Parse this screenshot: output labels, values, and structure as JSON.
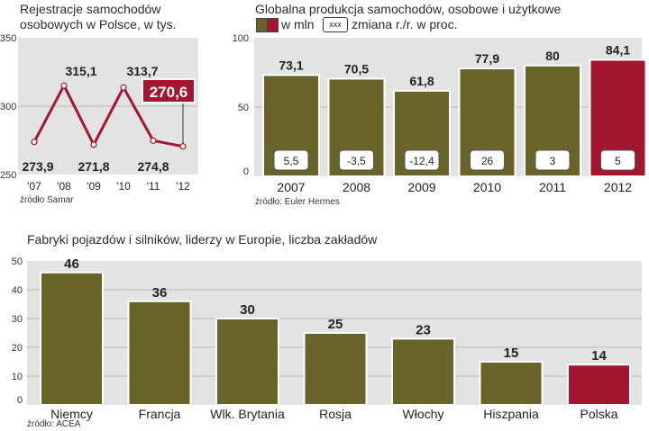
{
  "colors": {
    "olive": "#68642a",
    "crimson": "#a3162f",
    "panel": "#e3e3e3",
    "grid": "#b9b9b9",
    "label_box": "#ffffff",
    "text": "#222222"
  },
  "chart_data": [
    {
      "id": "registrations",
      "type": "line",
      "title_line1": "Rejestracje samochodów",
      "title_line2": "osobowych w Polsce, w tys.",
      "categories": [
        "'07",
        "'08",
        "'09",
        "'10",
        "'11",
        "'12"
      ],
      "values": [
        273.9,
        315.1,
        271.8,
        313.7,
        274.8,
        270.6
      ],
      "value_labels": [
        "273,9",
        "315,1",
        "271,8",
        "313,7",
        "274,8",
        "270,6"
      ],
      "highlight_index": 5,
      "y_ticks": [
        "250",
        "300",
        "350"
      ],
      "ylim": [
        250,
        350
      ],
      "source": "źródło Samar",
      "grid": true
    },
    {
      "id": "global_production",
      "type": "bar",
      "title": "Globalna produkcja samochodów, osobowe i użytkowe",
      "legend_unit": "w mln",
      "legend_box_label": "xxx",
      "legend_change": "zmiana r./r. w proc.",
      "categories": [
        "2007",
        "2008",
        "2009",
        "2010",
        "2011",
        "2012"
      ],
      "values": [
        73.1,
        70.5,
        61.8,
        77.9,
        80,
        84.1
      ],
      "value_labels": [
        "73,1",
        "70,5",
        "61,8",
        "77,9",
        "80",
        "84,1"
      ],
      "changes": [
        "5,5",
        "-3,5",
        "-12,4",
        "26",
        "3",
        "5"
      ],
      "highlight_index": 5,
      "y_ticks": [
        "0",
        "50",
        "100"
      ],
      "ylim": [
        0,
        100
      ],
      "source": "źródło: Euler Hermes",
      "grid": true
    },
    {
      "id": "factories",
      "type": "bar",
      "title": "Fabryki pojazdów i silników, liderzy w Europie, liczba zakładów",
      "categories": [
        "Niemcy",
        "Francja",
        "Wlk. Brytania",
        "Rosja",
        "Włochy",
        "Hiszpania",
        "Polska"
      ],
      "values": [
        46,
        36,
        30,
        25,
        23,
        15,
        14
      ],
      "value_labels": [
        "46",
        "36",
        "30",
        "25",
        "23",
        "15",
        "14"
      ],
      "highlight_index": 6,
      "y_ticks": [
        "0",
        "10",
        "20",
        "30",
        "40",
        "50"
      ],
      "ylim": [
        0,
        50
      ],
      "source": "źródło: ACEA",
      "grid": true
    }
  ]
}
